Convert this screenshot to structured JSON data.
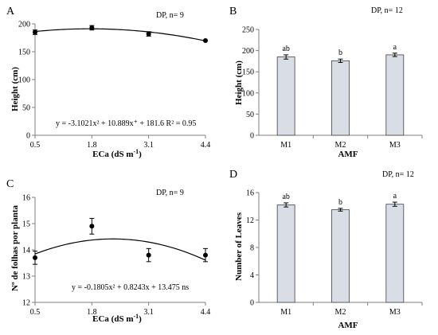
{
  "chart_data": [
    {
      "panel": "A",
      "type": "scatter",
      "note": "DP, n= 9",
      "xlabel_main": "ECa (dS m",
      "xlabel_sup": "-1",
      "xlabel_end": ")",
      "ylabel": "Height (cm)",
      "equation": "y = -3.1021x² + 10.889x⁺ + 181.6 R² = 0.95",
      "x_ticks": [
        "0.5",
        "1.8",
        "3.1",
        "4.4"
      ],
      "y_ticks": [
        "0",
        "50",
        "100",
        "150",
        "200"
      ],
      "xlim": [
        0.5,
        4.4
      ],
      "ylim": [
        0,
        200
      ],
      "x": [
        0.5,
        1.8,
        3.1,
        4.4
      ],
      "y": [
        185,
        193,
        182,
        170
      ],
      "err": [
        4,
        4,
        4,
        0
      ],
      "fit": {
        "a": -3.1021,
        "b": 10.889,
        "c": 181.6
      }
    },
    {
      "panel": "B",
      "type": "bar",
      "note": "DP, n= 12",
      "xlabel": "AMF",
      "ylabel": "Height (cm)",
      "categories": [
        "M1",
        "M2",
        "M3"
      ],
      "values": [
        185,
        176,
        190
      ],
      "err": [
        5,
        4,
        4
      ],
      "letters": [
        "ab",
        "b",
        "a"
      ],
      "y_ticks": [
        "0",
        "50",
        "100",
        "150",
        "200",
        "250"
      ],
      "ylim": [
        0,
        250
      ]
    },
    {
      "panel": "C",
      "type": "scatter",
      "note": "DP, n= 9",
      "xlabel_main": "ECa (dS m",
      "xlabel_sup": "-1",
      "xlabel_end": ")",
      "ylabel": "Nº de folhas por planta",
      "equation": "y = -0.1805x² + 0.8243x + 13.475 ns",
      "x_ticks": [
        "0.5",
        "1.8",
        "3.1",
        "4.4"
      ],
      "y_ticks": [
        "12",
        "13",
        "14",
        "15",
        "16"
      ],
      "xlim": [
        0.5,
        4.4
      ],
      "ylim": [
        12,
        16
      ],
      "x": [
        0.5,
        1.8,
        3.1,
        4.4
      ],
      "y": [
        13.7,
        14.9,
        13.8,
        13.8
      ],
      "err": [
        0.25,
        0.3,
        0.25,
        0.25
      ],
      "fit": {
        "a": -0.1805,
        "b": 0.8243,
        "c": 13.475
      }
    },
    {
      "panel": "D",
      "type": "bar",
      "note": "DP, n= 12",
      "xlabel": "AMF",
      "ylabel": "Number of Leaves",
      "categories": [
        "M1",
        "M2",
        "M3"
      ],
      "values": [
        14.2,
        13.5,
        14.3
      ],
      "err": [
        0.3,
        0.2,
        0.3
      ],
      "letters": [
        "ab",
        "b",
        "a"
      ],
      "y_ticks": [
        "0",
        "4",
        "8",
        "12",
        "16"
      ],
      "ylim": [
        0,
        16
      ]
    }
  ],
  "colors": {
    "bar_fill": "#d9dde6",
    "bar_stroke": "#404040",
    "axis": "#7f7f7f",
    "ink": "#000000"
  }
}
